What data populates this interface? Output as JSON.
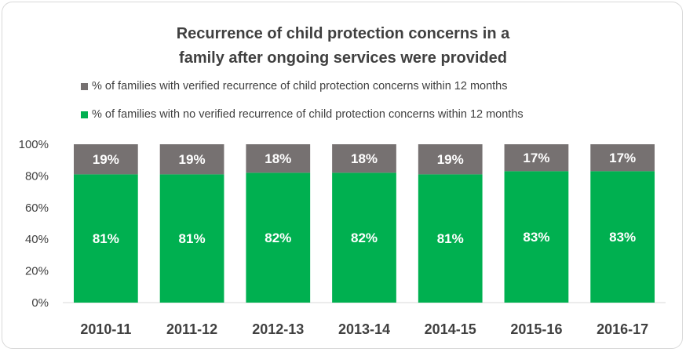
{
  "colors": {
    "recurrence": "#767171",
    "no_recurrence": "#00b050",
    "axis": "#d9d9d9",
    "text": "#404040"
  },
  "chart_data": {
    "type": "bar",
    "stacked": true,
    "title_lines": [
      "Recurrence of child protection concerns in a",
      "family after ongoing services were provided"
    ],
    "categories": [
      "2010-11",
      "2011-12",
      "2012-13",
      "2013-14",
      "2014-15",
      "2015-16",
      "2016-17"
    ],
    "series": [
      {
        "name": "% of families with no verified recurrence of child protection concerns within 12 months",
        "color": "#00b050",
        "values": [
          81,
          81,
          82,
          82,
          81,
          83,
          83
        ],
        "labels": [
          "81%",
          "81%",
          "82%",
          "82%",
          "81%",
          "83%",
          "83%"
        ]
      },
      {
        "name": "% of families with verified recurrence of child protection concerns within 12 months",
        "color": "#767171",
        "values": [
          19,
          19,
          18,
          18,
          19,
          17,
          17
        ],
        "labels": [
          "19%",
          "19%",
          "18%",
          "18%",
          "19%",
          "17%",
          "17%"
        ]
      }
    ],
    "legend": [
      {
        "name": "% of families with verified recurrence of child protection concerns within 12 months",
        "color": "#767171"
      },
      {
        "name": "% of families with no verified recurrence of child protection concerns within 12 months",
        "color": "#00b050"
      }
    ],
    "ylim": [
      0,
      100
    ],
    "yticks": [
      "0%",
      "20%",
      "40%",
      "60%",
      "80%",
      "100%"
    ],
    "grid": false,
    "legend_position": "top"
  }
}
